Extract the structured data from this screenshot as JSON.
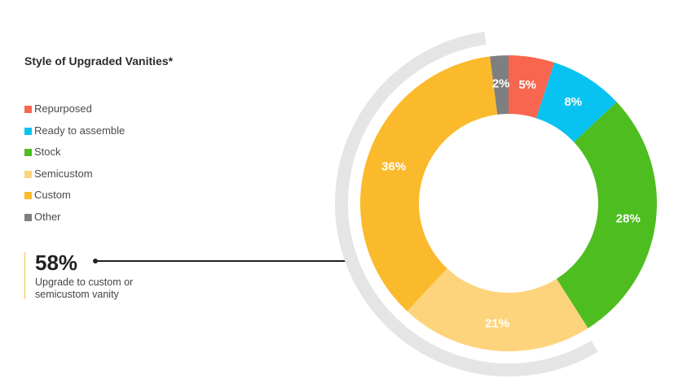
{
  "chart_data": {
    "type": "pie",
    "title": "Style of Upgraded Vanities*",
    "legend_position": "left",
    "categories": [
      "Repurposed",
      "Ready to assemble",
      "Stock",
      "Semicustom",
      "Custom",
      "Other"
    ],
    "values": [
      5,
      8,
      28,
      21,
      36,
      2
    ],
    "value_labels": [
      "5%",
      "8%",
      "28%",
      "21%",
      "36%",
      "2%"
    ],
    "colors": [
      "#f96650",
      "#08c3f1",
      "#4dbd1f",
      "#fdd47c",
      "#fbba2b",
      "#7f7f7f"
    ]
  },
  "callout": {
    "value": "58%",
    "text": "Upgrade to custom or semicustom vanity"
  }
}
